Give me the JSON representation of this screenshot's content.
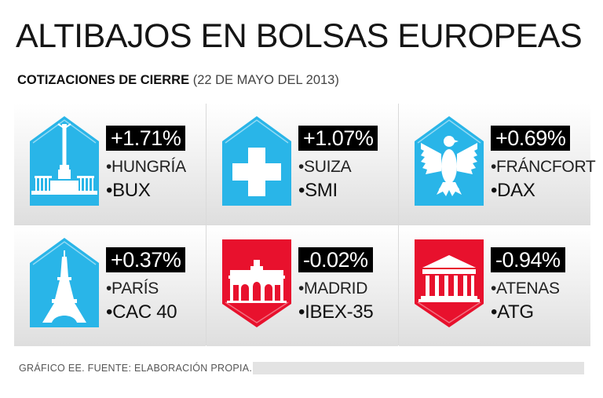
{
  "title": "ALTIBAJOS EN BOLSAS EUROPEAS",
  "subtitle": {
    "bold": "COTIZACIONES DE CIERRE",
    "light": " (22 DE MAYO DEL 2013)"
  },
  "colors": {
    "positive": "#29b5e8",
    "negative": "#e8112d",
    "label_bg": "#000000"
  },
  "markets": [
    {
      "change": "+1.71%",
      "location": "•HUNGRÍA",
      "index": "•BUX",
      "icon": "monument-icon",
      "trend": "up"
    },
    {
      "change": "+1.07%",
      "location": "•SUIZA",
      "index": "•SMI",
      "icon": "swiss-cross-icon",
      "trend": "up"
    },
    {
      "change": "+0.69%",
      "location": "•FRÁNCFORT",
      "index": "•DAX",
      "icon": "eagle-icon",
      "trend": "up"
    },
    {
      "change": "+0.37%",
      "location": "•PARÍS",
      "index": "•CAC 40",
      "icon": "eiffel-tower-icon",
      "trend": "up"
    },
    {
      "change": "-0.02%",
      "location": "•MADRID",
      "index": "•IBEX-35",
      "icon": "gate-icon",
      "trend": "down"
    },
    {
      "change": "-0.94%",
      "location": "•ATENAS",
      "index": "•ATG",
      "icon": "temple-icon",
      "trend": "down"
    }
  ],
  "footer": "GRÁFICO EE. FUENTE: ELABORACIÓN PROPIA."
}
